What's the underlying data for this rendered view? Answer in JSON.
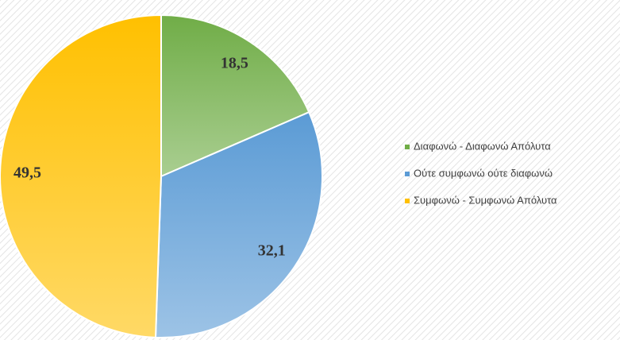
{
  "chart_data": {
    "type": "pie",
    "categories": [
      "Διαφωνώ - Διαφωνώ Απόλυτα",
      "Ούτε συμφωνώ ούτε διαφωνώ",
      "Συμφωνώ - Συμφωνώ Απόλυτα"
    ],
    "values": [
      18.5,
      32.1,
      49.5
    ],
    "value_labels": [
      "18,5",
      "32,1",
      "49,5"
    ],
    "colors": [
      "#70ad47",
      "#5b9bd5",
      "#ffc000"
    ],
    "legend": "right"
  }
}
